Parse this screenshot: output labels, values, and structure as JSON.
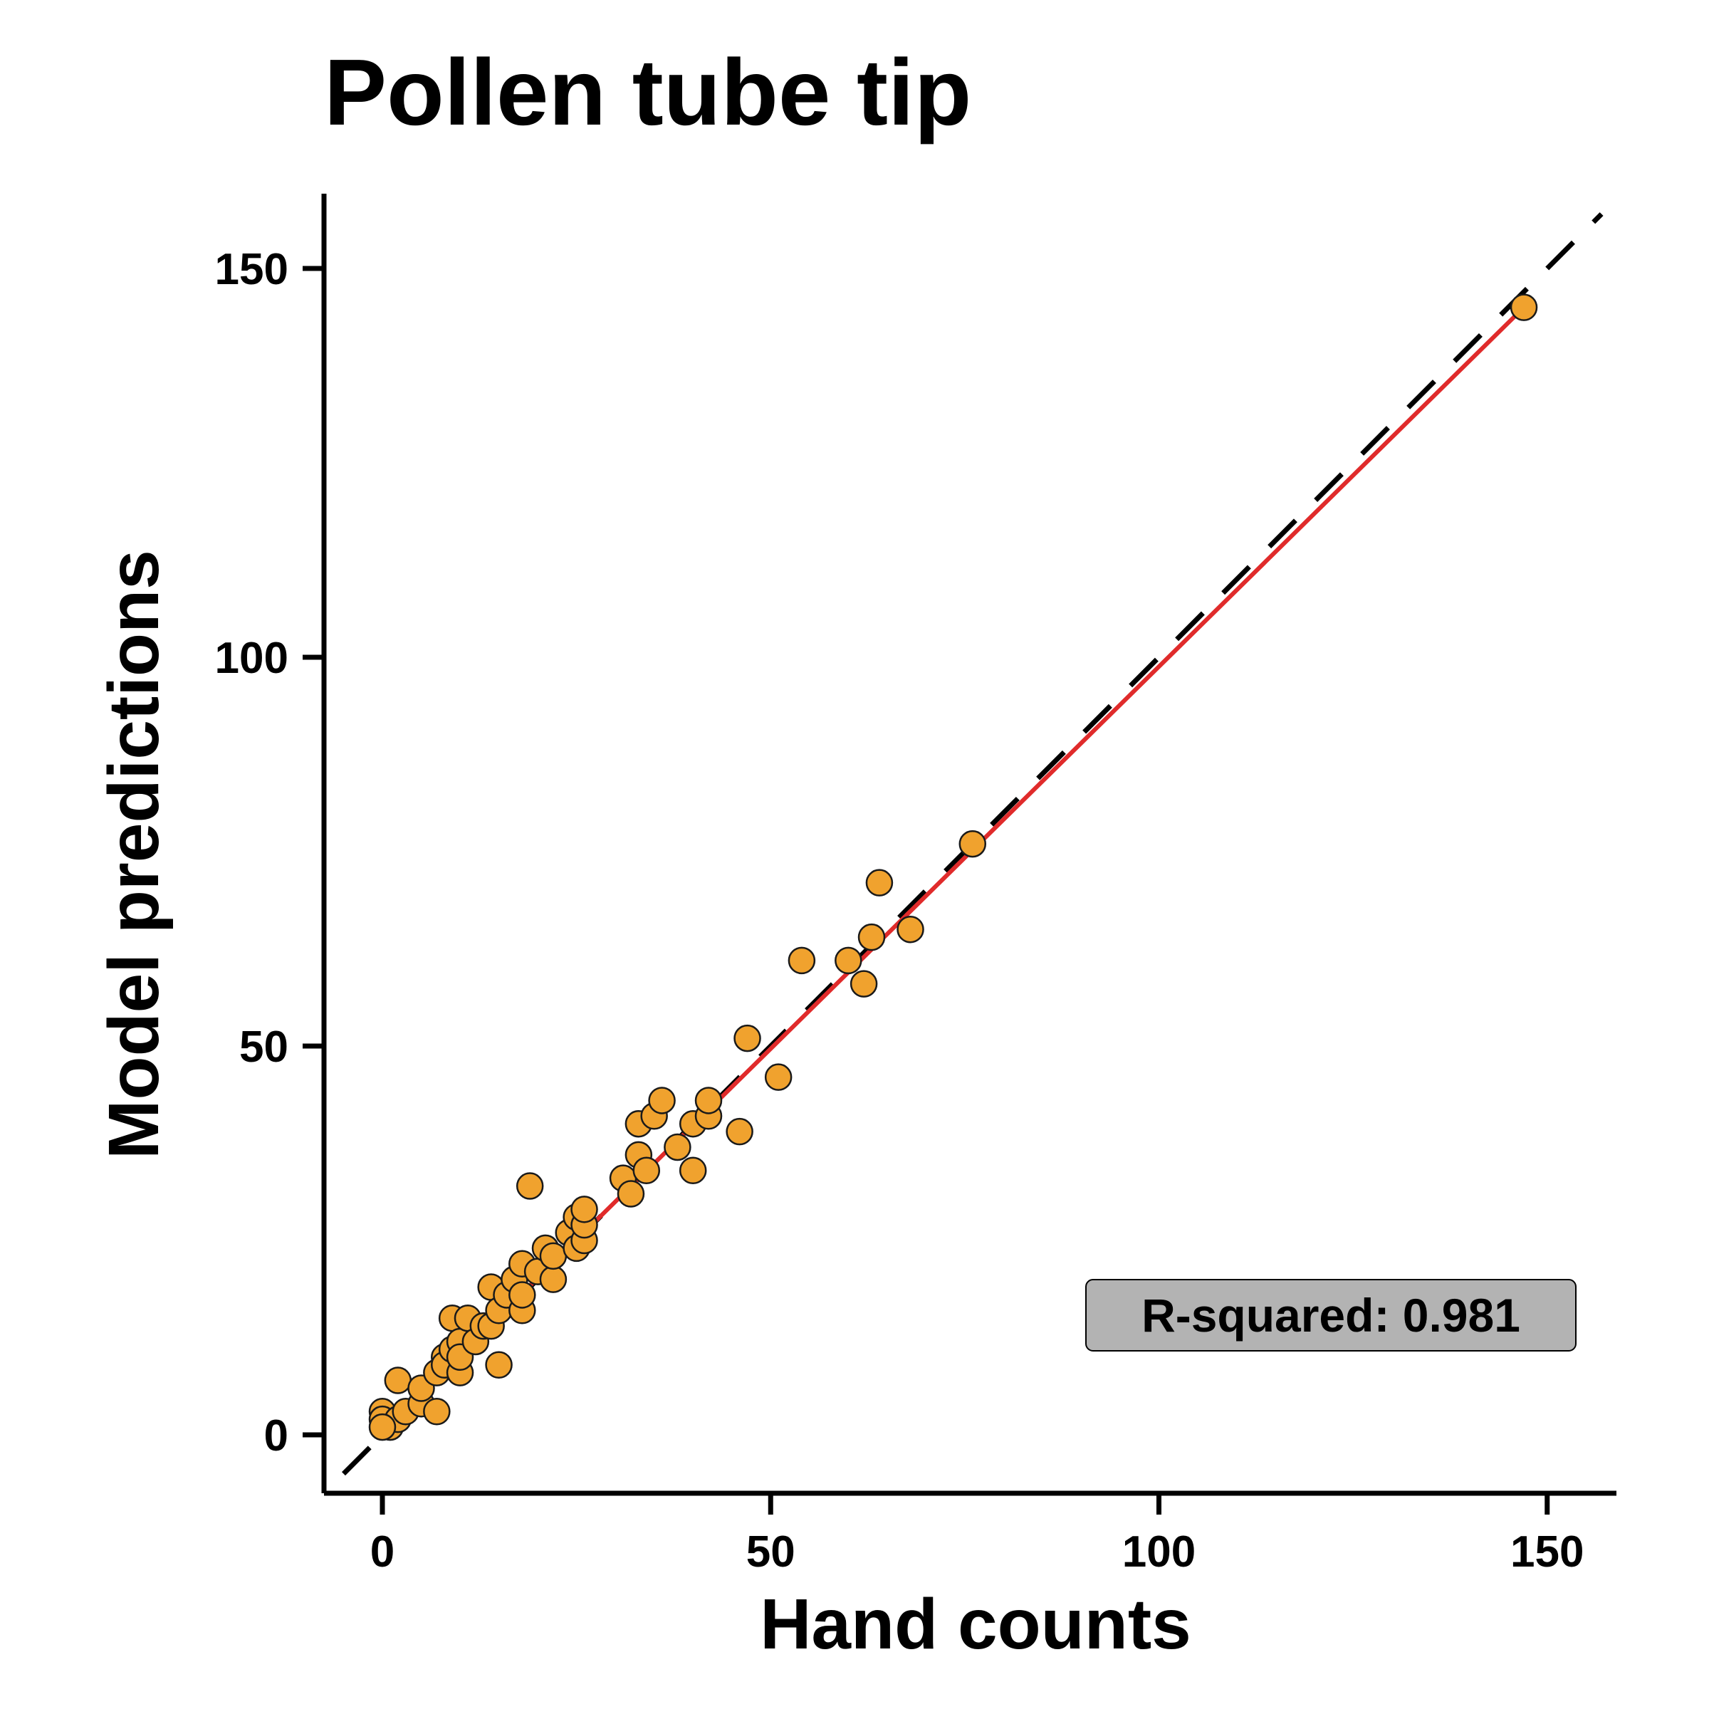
{
  "chart_data": {
    "type": "scatter",
    "title": "Pollen tube tip",
    "xlabel": "Hand counts",
    "ylabel": "Model predictions",
    "xlim": [
      -7.5,
      159
    ],
    "ylim": [
      -7.5,
      159
    ],
    "xticks": [
      0,
      50,
      100,
      150
    ],
    "yticks": [
      0,
      50,
      100,
      150
    ],
    "grid": false,
    "legend": "none",
    "annotation": "R-squared: 0.981",
    "identity_line": {
      "style": "dashed",
      "color": "#000000",
      "from": [
        -5,
        -5
      ],
      "to": [
        157,
        157
      ]
    },
    "fit_line": {
      "color": "#e02b2b",
      "from": [
        0,
        0.5
      ],
      "to": [
        147,
        145
      ]
    },
    "point_color": "#f0a22e",
    "point_edge": "#1a1a1a",
    "annotation_box_color": "#b3b3b3",
    "points": [
      [
        0,
        3
      ],
      [
        0,
        2
      ],
      [
        1,
        1
      ],
      [
        2,
        2
      ],
      [
        3,
        3
      ],
      [
        0,
        1
      ],
      [
        2,
        7
      ],
      [
        5,
        4
      ],
      [
        5,
        6
      ],
      [
        7,
        3
      ],
      [
        7,
        8
      ],
      [
        8,
        10
      ],
      [
        8,
        9
      ],
      [
        9,
        11
      ],
      [
        9,
        15
      ],
      [
        10,
        12
      ],
      [
        10,
        8
      ],
      [
        10,
        10
      ],
      [
        11,
        15
      ],
      [
        12,
        12
      ],
      [
        13,
        14
      ],
      [
        14,
        14
      ],
      [
        14,
        19
      ],
      [
        15,
        9
      ],
      [
        15,
        16
      ],
      [
        16,
        18
      ],
      [
        17,
        20
      ],
      [
        18,
        16
      ],
      [
        18,
        18
      ],
      [
        18,
        22
      ],
      [
        19,
        32
      ],
      [
        20,
        21
      ],
      [
        21,
        24
      ],
      [
        22,
        20
      ],
      [
        22,
        23
      ],
      [
        24,
        26
      ],
      [
        25,
        24
      ],
      [
        25,
        28
      ],
      [
        26,
        25
      ],
      [
        26,
        27
      ],
      [
        26,
        29
      ],
      [
        31,
        33
      ],
      [
        32,
        31
      ],
      [
        33,
        36
      ],
      [
        33,
        40
      ],
      [
        34,
        34
      ],
      [
        35,
        41
      ],
      [
        36,
        43
      ],
      [
        38,
        37
      ],
      [
        40,
        34
      ],
      [
        40,
        40
      ],
      [
        42,
        41
      ],
      [
        42,
        43
      ],
      [
        46,
        39
      ],
      [
        47,
        51
      ],
      [
        51,
        46
      ],
      [
        54,
        61
      ],
      [
        60,
        61
      ],
      [
        62,
        58
      ],
      [
        63,
        64
      ],
      [
        64,
        71
      ],
      [
        68,
        65
      ],
      [
        76,
        76
      ],
      [
        147,
        145
      ]
    ]
  }
}
